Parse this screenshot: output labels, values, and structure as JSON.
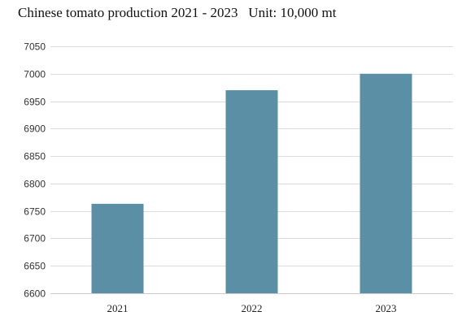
{
  "chart_data": {
    "type": "bar",
    "title": "Chinese tomato production 2021 - 2023   Unit: 10,000 mt",
    "categories": [
      "2021",
      "2022",
      "2023"
    ],
    "values": [
      6763,
      6970,
      7000
    ],
    "ylim": [
      6600,
      7050
    ],
    "yticks": [
      6600,
      6650,
      6700,
      6750,
      6800,
      6850,
      6900,
      6950,
      7000,
      7050
    ],
    "xlabel": "",
    "ylabel": "",
    "grid": true,
    "bar_color": "#5b8fa6",
    "grid_color": "#dddddd"
  }
}
